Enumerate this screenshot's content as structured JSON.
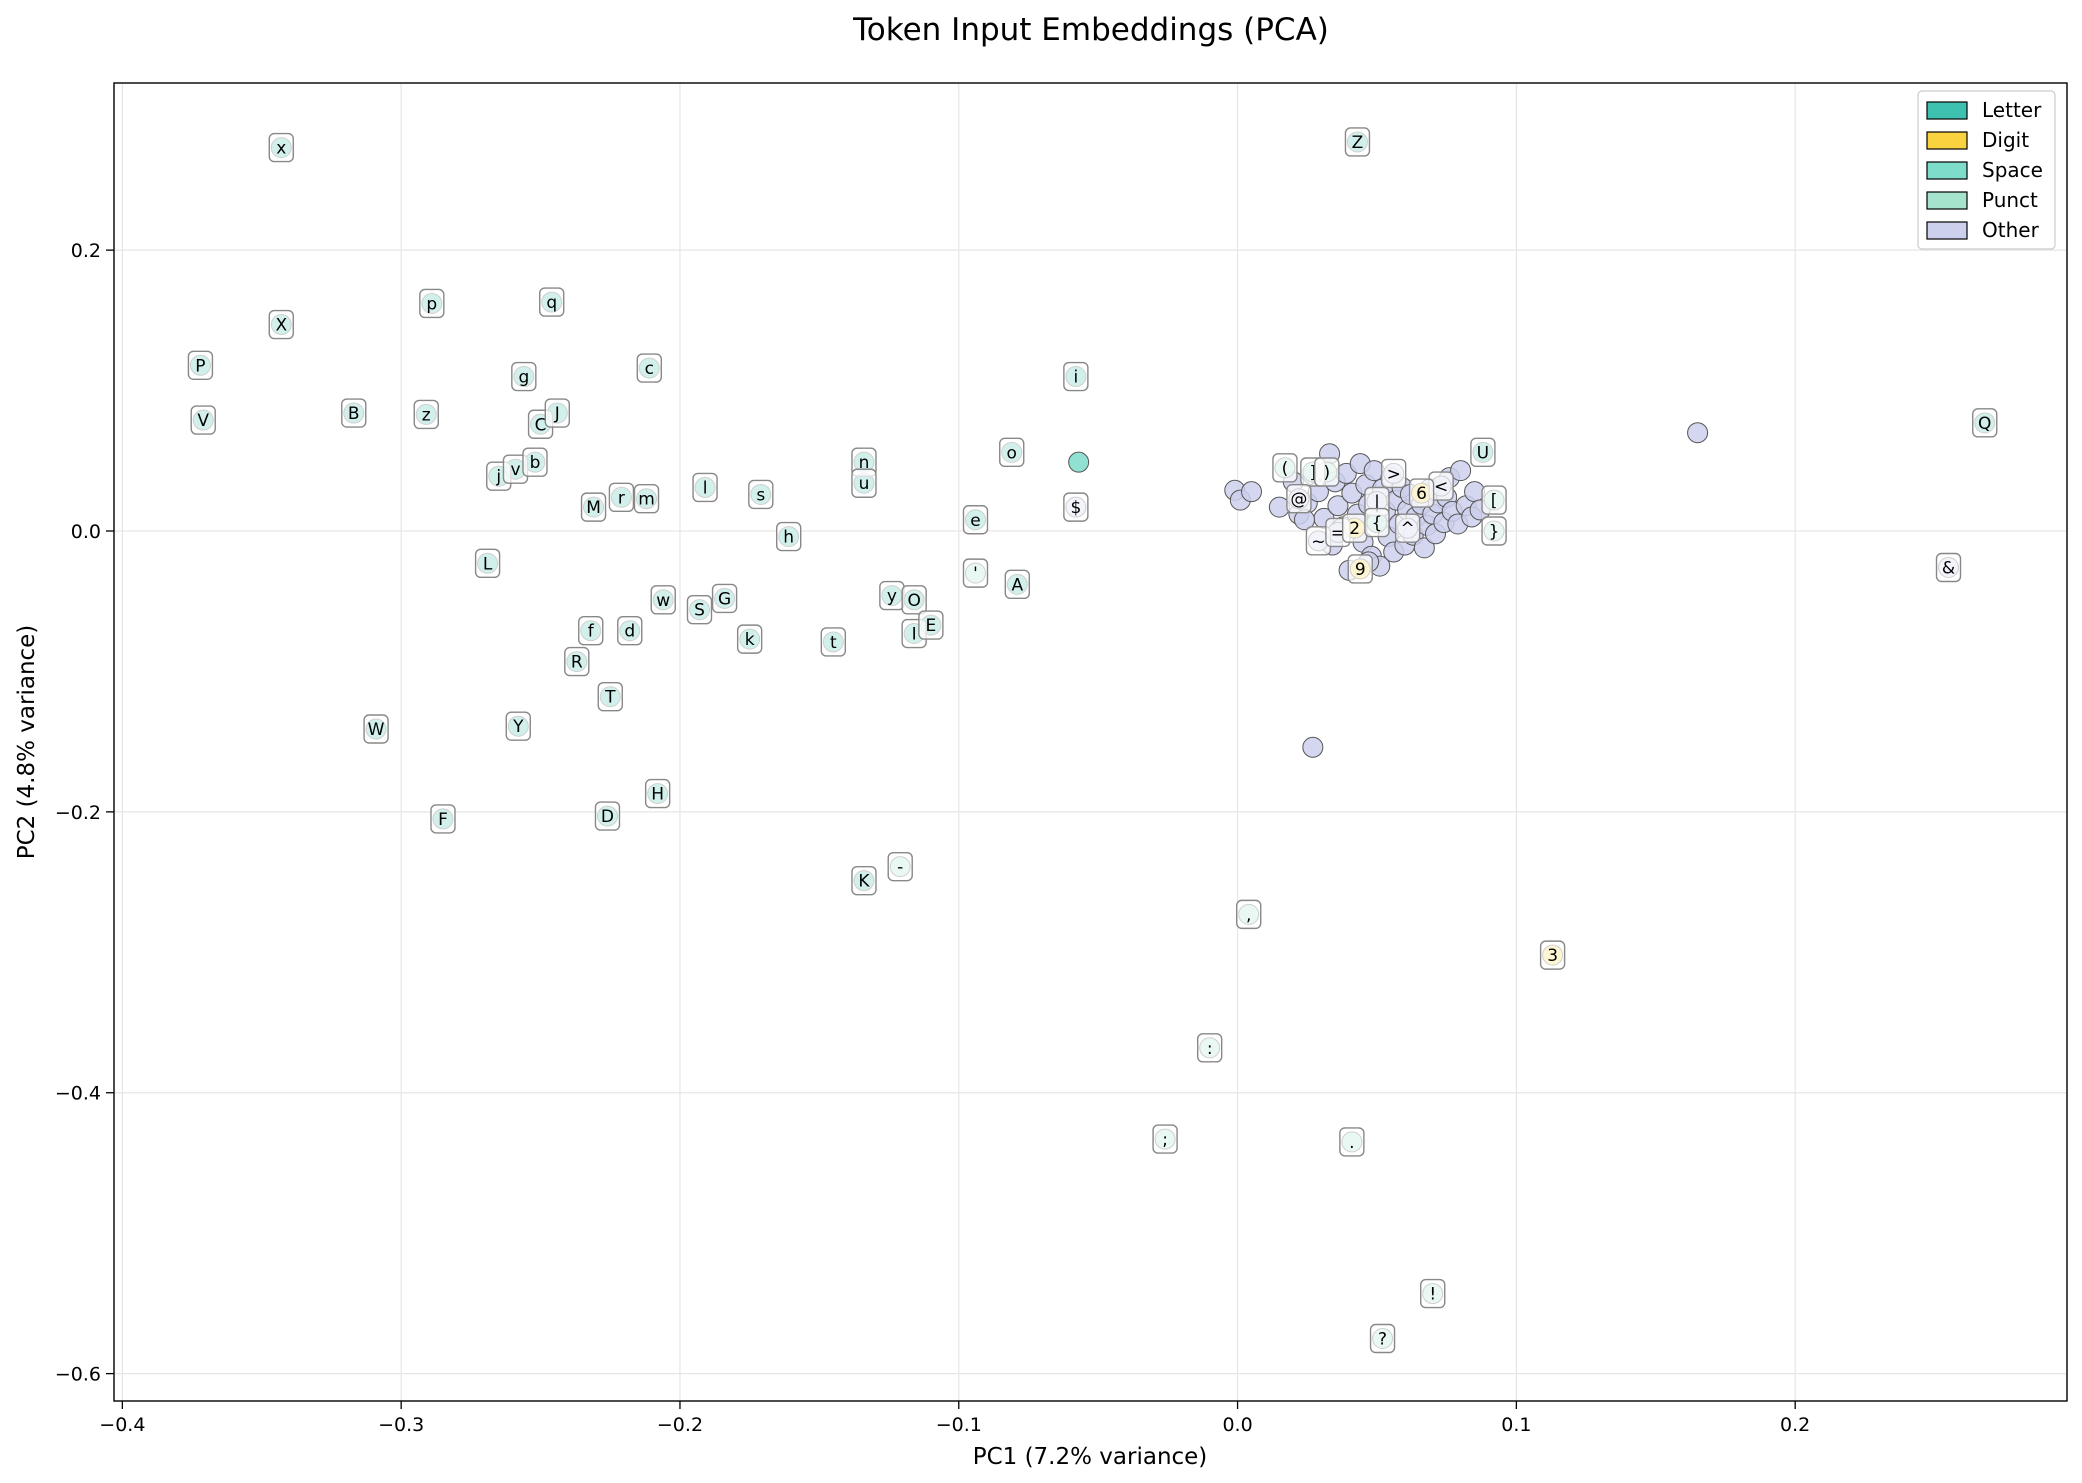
{
  "chart_data": {
    "type": "scatter",
    "title": "Token Input Embeddings (PCA)",
    "xlabel": "PC1 (7.2% variance)",
    "ylabel": "PC2 (4.8% variance)",
    "xlim": [
      -0.403,
      0.2975
    ],
    "ylim": [
      -0.6195,
      0.319
    ],
    "xticks": [
      -0.4,
      -0.3,
      -0.2,
      -0.1,
      0.0,
      0.1,
      0.2
    ],
    "xtick_labels": [
      "−0.4",
      "−0.3",
      "−0.2",
      "−0.1",
      "0.0",
      "0.1",
      "0.2"
    ],
    "yticks": [
      -0.6,
      -0.4,
      -0.2,
      0.0,
      0.2
    ],
    "ytick_labels": [
      "−0.6",
      "−0.4",
      "−0.2",
      "0.0",
      "0.2"
    ],
    "grid": true,
    "legend_position": "top-right",
    "legend": [
      {
        "name": "Letter",
        "color": "#3fc1b0"
      },
      {
        "name": "Digit",
        "color": "#f9d33f"
      },
      {
        "name": "Space",
        "color": "#7edccb"
      },
      {
        "name": "Punct",
        "color": "#a6e3cc"
      },
      {
        "name": "Other",
        "color": "#cdd0ec"
      }
    ],
    "labeled_points": [
      {
        "t": "x",
        "x": -0.343,
        "y": 0.273,
        "c": "Letter"
      },
      {
        "t": "X",
        "x": -0.343,
        "y": 0.147,
        "c": "Letter"
      },
      {
        "t": "P",
        "x": -0.372,
        "y": 0.118,
        "c": "Letter"
      },
      {
        "t": "V",
        "x": -0.371,
        "y": 0.079,
        "c": "Letter"
      },
      {
        "t": "B",
        "x": -0.317,
        "y": 0.084,
        "c": "Letter"
      },
      {
        "t": "p",
        "x": -0.289,
        "y": 0.162,
        "c": "Letter"
      },
      {
        "t": "z",
        "x": -0.291,
        "y": 0.083,
        "c": "Letter"
      },
      {
        "t": "q",
        "x": -0.246,
        "y": 0.163,
        "c": "Letter"
      },
      {
        "t": "g",
        "x": -0.256,
        "y": 0.11,
        "c": "Letter"
      },
      {
        "t": "C",
        "x": -0.25,
        "y": 0.076,
        "c": "Letter"
      },
      {
        "t": "J",
        "x": -0.244,
        "y": 0.084,
        "c": "Letter"
      },
      {
        "t": "j",
        "x": -0.265,
        "y": 0.039,
        "c": "Letter"
      },
      {
        "t": "v",
        "x": -0.259,
        "y": 0.044,
        "c": "Letter"
      },
      {
        "t": "b",
        "x": -0.252,
        "y": 0.049,
        "c": "Letter"
      },
      {
        "t": "c",
        "x": -0.211,
        "y": 0.116,
        "c": "Letter"
      },
      {
        "t": "M",
        "x": -0.231,
        "y": 0.017,
        "c": "Letter"
      },
      {
        "t": "r",
        "x": -0.221,
        "y": 0.024,
        "c": "Letter"
      },
      {
        "t": "m",
        "x": -0.212,
        "y": 0.023,
        "c": "Letter"
      },
      {
        "t": "l",
        "x": -0.191,
        "y": 0.031,
        "c": "Letter"
      },
      {
        "t": "s",
        "x": -0.171,
        "y": 0.026,
        "c": "Letter"
      },
      {
        "t": "h",
        "x": -0.161,
        "y": -0.004,
        "c": "Letter"
      },
      {
        "t": "n",
        "x": -0.134,
        "y": 0.049,
        "c": "Letter"
      },
      {
        "t": "u",
        "x": -0.134,
        "y": 0.034,
        "c": "Letter"
      },
      {
        "t": "L",
        "x": -0.269,
        "y": -0.023,
        "c": "Letter"
      },
      {
        "t": "f",
        "x": -0.232,
        "y": -0.071,
        "c": "Letter"
      },
      {
        "t": "d",
        "x": -0.218,
        "y": -0.071,
        "c": "Letter"
      },
      {
        "t": "w",
        "x": -0.206,
        "y": -0.049,
        "c": "Letter"
      },
      {
        "t": "S",
        "x": -0.193,
        "y": -0.056,
        "c": "Letter"
      },
      {
        "t": "G",
        "x": -0.184,
        "y": -0.048,
        "c": "Letter"
      },
      {
        "t": "k",
        "x": -0.175,
        "y": -0.077,
        "c": "Letter"
      },
      {
        "t": "t",
        "x": -0.145,
        "y": -0.079,
        "c": "Letter"
      },
      {
        "t": "R",
        "x": -0.237,
        "y": -0.093,
        "c": "Letter"
      },
      {
        "t": "T",
        "x": -0.225,
        "y": -0.118,
        "c": "Letter"
      },
      {
        "t": "W",
        "x": -0.309,
        "y": -0.141,
        "c": "Letter"
      },
      {
        "t": "Y",
        "x": -0.258,
        "y": -0.139,
        "c": "Letter"
      },
      {
        "t": "F",
        "x": -0.285,
        "y": -0.205,
        "c": "Letter"
      },
      {
        "t": "D",
        "x": -0.226,
        "y": -0.203,
        "c": "Letter"
      },
      {
        "t": "H",
        "x": -0.208,
        "y": -0.187,
        "c": "Letter"
      },
      {
        "t": "K",
        "x": -0.134,
        "y": -0.249,
        "c": "Letter"
      },
      {
        "t": "-",
        "x": -0.121,
        "y": -0.239,
        "c": "Punct"
      },
      {
        "t": "y",
        "x": -0.124,
        "y": -0.046,
        "c": "Letter"
      },
      {
        "t": "O",
        "x": -0.116,
        "y": -0.049,
        "c": "Letter"
      },
      {
        "t": "I",
        "x": -0.116,
        "y": -0.073,
        "c": "Letter"
      },
      {
        "t": "E",
        "x": -0.11,
        "y": -0.067,
        "c": "Letter"
      },
      {
        "t": "e",
        "x": -0.094,
        "y": 0.008,
        "c": "Letter"
      },
      {
        "t": "'",
        "x": -0.094,
        "y": -0.03,
        "c": "Punct"
      },
      {
        "t": "A",
        "x": -0.079,
        "y": -0.038,
        "c": "Letter"
      },
      {
        "t": "o",
        "x": -0.081,
        "y": 0.056,
        "c": "Letter"
      },
      {
        "t": "i",
        "x": -0.058,
        "y": 0.11,
        "c": "Letter"
      },
      {
        "t": "$",
        "x": -0.058,
        "y": 0.017,
        "c": "Other"
      },
      {
        "t": "Z",
        "x": 0.043,
        "y": 0.277,
        "c": "Letter"
      },
      {
        "t": "U",
        "x": 0.088,
        "y": 0.056,
        "c": "Letter"
      },
      {
        "t": "(",
        "x": 0.017,
        "y": 0.045,
        "c": "Punct"
      },
      {
        "t": "]",
        "x": 0.027,
        "y": 0.042,
        "c": "Punct"
      },
      {
        "t": ")",
        "x": 0.032,
        "y": 0.042,
        "c": "Punct"
      },
      {
        "t": ">",
        "x": 0.056,
        "y": 0.041,
        "c": "Other"
      },
      {
        "t": "<",
        "x": 0.073,
        "y": 0.032,
        "c": "Other"
      },
      {
        "t": "6",
        "x": 0.066,
        "y": 0.027,
        "c": "Digit"
      },
      {
        "t": "@",
        "x": 0.022,
        "y": 0.023,
        "c": "Other"
      },
      {
        "t": "|",
        "x": 0.05,
        "y": 0.021,
        "c": "Other"
      },
      {
        "t": "[",
        "x": 0.092,
        "y": 0.022,
        "c": "Punct"
      },
      {
        "t": "}",
        "x": 0.092,
        "y": 0.0,
        "c": "Punct"
      },
      {
        "t": "~",
        "x": 0.029,
        "y": -0.007,
        "c": "Other"
      },
      {
        "t": "=",
        "x": 0.036,
        "y": -0.001,
        "c": "Other"
      },
      {
        "t": "2",
        "x": 0.042,
        "y": 0.002,
        "c": "Digit"
      },
      {
        "t": "{",
        "x": 0.05,
        "y": 0.006,
        "c": "Punct"
      },
      {
        "t": "^",
        "x": 0.061,
        "y": 0.002,
        "c": "Other"
      },
      {
        "t": "9",
        "x": 0.044,
        "y": -0.027,
        "c": "Digit"
      },
      {
        "t": "Q",
        "x": 0.268,
        "y": 0.077,
        "c": "Letter"
      },
      {
        "t": "&",
        "x": 0.255,
        "y": -0.026,
        "c": "Other"
      },
      {
        "t": "3",
        "x": 0.113,
        "y": -0.302,
        "c": "Digit"
      },
      {
        "t": ",",
        "x": 0.004,
        "y": -0.273,
        "c": "Punct"
      },
      {
        "t": ":",
        "x": -0.01,
        "y": -0.368,
        "c": "Punct"
      },
      {
        "t": ";",
        "x": -0.026,
        "y": -0.433,
        "c": "Punct"
      },
      {
        "t": ".",
        "x": 0.041,
        "y": -0.435,
        "c": "Punct"
      },
      {
        "t": "!",
        "x": 0.07,
        "y": -0.543,
        "c": "Punct"
      },
      {
        "t": "?",
        "x": 0.052,
        "y": -0.575,
        "c": "Punct"
      }
    ],
    "unlabeled_points": [
      {
        "x": -0.057,
        "y": 0.049,
        "c": "Space"
      },
      {
        "x": 0.165,
        "y": 0.07,
        "c": "Other"
      },
      {
        "x": 0.027,
        "y": -0.154,
        "c": "Other"
      },
      {
        "x": -0.001,
        "y": 0.029,
        "c": "Other"
      },
      {
        "x": 0.001,
        "y": 0.022,
        "c": "Other"
      },
      {
        "x": 0.005,
        "y": 0.028,
        "c": "Other"
      },
      {
        "x": 0.015,
        "y": 0.017,
        "c": "Other"
      },
      {
        "x": 0.02,
        "y": 0.035,
        "c": "Other"
      },
      {
        "x": 0.022,
        "y": 0.012,
        "c": "Other"
      },
      {
        "x": 0.025,
        "y": 0.02,
        "c": "Other"
      },
      {
        "x": 0.027,
        "y": 0.04,
        "c": "Other"
      },
      {
        "x": 0.029,
        "y": 0.028,
        "c": "Other"
      },
      {
        "x": 0.031,
        "y": 0.009,
        "c": "Other"
      },
      {
        "x": 0.033,
        "y": 0.055,
        "c": "Other"
      },
      {
        "x": 0.035,
        "y": 0.035,
        "c": "Other"
      },
      {
        "x": 0.036,
        "y": 0.018,
        "c": "Other"
      },
      {
        "x": 0.038,
        "y": 0.003,
        "c": "Other"
      },
      {
        "x": 0.039,
        "y": 0.041,
        "c": "Other"
      },
      {
        "x": 0.041,
        "y": 0.027,
        "c": "Other"
      },
      {
        "x": 0.043,
        "y": 0.012,
        "c": "Other"
      },
      {
        "x": 0.044,
        "y": 0.048,
        "c": "Other"
      },
      {
        "x": 0.045,
        "y": -0.008,
        "c": "Other"
      },
      {
        "x": 0.046,
        "y": 0.033,
        "c": "Other"
      },
      {
        "x": 0.047,
        "y": 0.019,
        "c": "Other"
      },
      {
        "x": 0.048,
        "y": -0.018,
        "c": "Other"
      },
      {
        "x": 0.049,
        "y": 0.043,
        "c": "Other"
      },
      {
        "x": 0.05,
        "y": 0.008,
        "c": "Other"
      },
      {
        "x": 0.051,
        "y": -0.025,
        "c": "Other"
      },
      {
        "x": 0.052,
        "y": 0.03,
        "c": "Other"
      },
      {
        "x": 0.053,
        "y": 0.014,
        "c": "Other"
      },
      {
        "x": 0.054,
        "y": -0.004,
        "c": "Other"
      },
      {
        "x": 0.055,
        "y": 0.038,
        "c": "Other"
      },
      {
        "x": 0.056,
        "y": -0.015,
        "c": "Other"
      },
      {
        "x": 0.057,
        "y": 0.022,
        "c": "Other"
      },
      {
        "x": 0.058,
        "y": 0.005,
        "c": "Other"
      },
      {
        "x": 0.059,
        "y": 0.031,
        "c": "Other"
      },
      {
        "x": 0.06,
        "y": -0.01,
        "c": "Other"
      },
      {
        "x": 0.061,
        "y": 0.015,
        "c": "Other"
      },
      {
        "x": 0.062,
        "y": 0.026,
        "c": "Other"
      },
      {
        "x": 0.063,
        "y": -0.003,
        "c": "Other"
      },
      {
        "x": 0.064,
        "y": 0.01,
        "c": "Other"
      },
      {
        "x": 0.066,
        "y": 0.019,
        "c": "Other"
      },
      {
        "x": 0.067,
        "y": -0.012,
        "c": "Other"
      },
      {
        "x": 0.068,
        "y": 0.004,
        "c": "Other"
      },
      {
        "x": 0.069,
        "y": 0.03,
        "c": "Other"
      },
      {
        "x": 0.07,
        "y": 0.012,
        "c": "Other"
      },
      {
        "x": 0.071,
        "y": -0.002,
        "c": "Other"
      },
      {
        "x": 0.072,
        "y": 0.02,
        "c": "Other"
      },
      {
        "x": 0.074,
        "y": 0.006,
        "c": "Other"
      },
      {
        "x": 0.075,
        "y": 0.024,
        "c": "Other"
      },
      {
        "x": 0.076,
        "y": 0.038,
        "c": "Other"
      },
      {
        "x": 0.077,
        "y": 0.014,
        "c": "Other"
      },
      {
        "x": 0.079,
        "y": 0.005,
        "c": "Other"
      },
      {
        "x": 0.08,
        "y": 0.043,
        "c": "Other"
      },
      {
        "x": 0.082,
        "y": 0.018,
        "c": "Other"
      },
      {
        "x": 0.084,
        "y": 0.01,
        "c": "Other"
      },
      {
        "x": 0.085,
        "y": 0.028,
        "c": "Other"
      },
      {
        "x": 0.087,
        "y": 0.015,
        "c": "Other"
      },
      {
        "x": 0.04,
        "y": -0.028,
        "c": "Other"
      },
      {
        "x": 0.047,
        "y": -0.022,
        "c": "Other"
      },
      {
        "x": 0.024,
        "y": 0.008,
        "c": "Other"
      },
      {
        "x": 0.034,
        "y": -0.01,
        "c": "Other"
      }
    ]
  }
}
